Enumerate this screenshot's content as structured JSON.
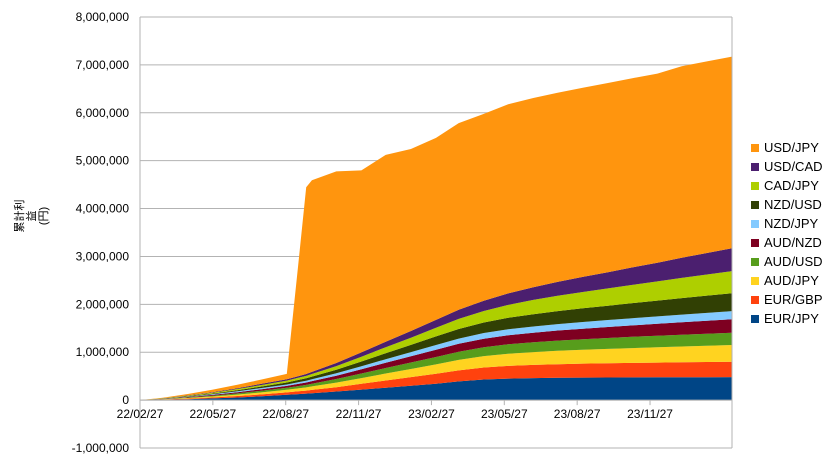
{
  "chart_data": {
    "type": "area",
    "stacked": true,
    "title": "",
    "xlabel": "",
    "ylabel": "累計利益\n(円)",
    "ylim": [
      -1000000,
      8000000
    ],
    "yticks": [
      -1000000,
      0,
      1000000,
      2000000,
      3000000,
      4000000,
      5000000,
      6000000,
      7000000,
      8000000
    ],
    "ytick_labels": [
      "-1,000,000",
      "0",
      "1,000,000",
      "2,000,000",
      "3,000,000",
      "4,000,000",
      "5,000,000",
      "6,000,000",
      "7,000,000",
      "8,000,000"
    ],
    "xtick_labels": [
      "22/02/27",
      "22/05/27",
      "22/08/27",
      "22/11/27",
      "23/02/27",
      "23/05/27",
      "23/08/27",
      "23/11/27"
    ],
    "grid": "horizontal",
    "legend_position": "right",
    "x": [
      "2022-02-27",
      "2022-03-27",
      "2022-04-27",
      "2022-05-27",
      "2022-06-27",
      "2022-07-27",
      "2022-08-27",
      "2022-09-10",
      "2022-09-20",
      "2022-09-27",
      "2022-10-27",
      "2022-11-27",
      "2022-12-27",
      "2023-01-27",
      "2023-02-27",
      "2023-03-27",
      "2023-04-27",
      "2023-05-27",
      "2023-06-27",
      "2023-07-27",
      "2023-08-27",
      "2023-09-27",
      "2023-10-27",
      "2023-11-27",
      "2023-12-27",
      "2024-01-27",
      "2024-02-27"
    ],
    "series": [
      {
        "name": "EUR/JPY",
        "color": "#004586",
        "values": [
          0,
          8000,
          20000,
          35000,
          55000,
          80000,
          110000,
          125000,
          135000,
          145000,
          180000,
          220000,
          260000,
          300000,
          340000,
          390000,
          430000,
          450000,
          460000,
          465000,
          470000,
          472000,
          474000,
          476000,
          478000,
          479000,
          480000
        ]
      },
      {
        "name": "EUR/GBP",
        "color": "#ff420e",
        "values": [
          0,
          5000,
          12000,
          20000,
          30000,
          40000,
          50000,
          58000,
          63000,
          68000,
          90000,
          120000,
          150000,
          180000,
          210000,
          230000,
          250000,
          265000,
          275000,
          285000,
          292000,
          298000,
          303000,
          308000,
          312000,
          316000,
          320000
        ]
      },
      {
        "name": "AUD/JPY",
        "color": "#ffd320",
        "values": [
          0,
          5000,
          12000,
          20000,
          30000,
          42000,
          55000,
          62000,
          68000,
          74000,
          95000,
          120000,
          145000,
          170000,
          195000,
          220000,
          240000,
          255000,
          268000,
          280000,
          290000,
          300000,
          310000,
          320000,
          330000,
          340000,
          350000
        ]
      },
      {
        "name": "AUD/USD",
        "color": "#579d1c",
        "values": [
          0,
          4000,
          10000,
          18000,
          26000,
          34000,
          42000,
          48000,
          52000,
          56000,
          75000,
          95000,
          115000,
          135000,
          155000,
          170000,
          185000,
          195000,
          205000,
          213000,
          220000,
          227000,
          234000,
          240000,
          246000,
          252000,
          258000
        ]
      },
      {
        "name": "AUD/NZD",
        "color": "#7e0021",
        "values": [
          0,
          4000,
          10000,
          16000,
          24000,
          32000,
          40000,
          46000,
          50000,
          54000,
          70000,
          90000,
          110000,
          130000,
          150000,
          165000,
          178000,
          190000,
          200000,
          210000,
          220000,
          230000,
          240000,
          250000,
          260000,
          270000,
          280000
        ]
      },
      {
        "name": "NZD/JPY",
        "color": "#83caff",
        "values": [
          0,
          3000,
          7000,
          12000,
          18000,
          24000,
          30000,
          34000,
          37000,
          40000,
          50000,
          62000,
          75000,
          88000,
          100000,
          110000,
          118000,
          124000,
          130000,
          135000,
          140000,
          145000,
          150000,
          155000,
          160000,
          165000,
          170000
        ]
      },
      {
        "name": "NZD/USD",
        "color": "#314004",
        "values": [
          0,
          4000,
          10000,
          16000,
          24000,
          32000,
          40000,
          46000,
          50000,
          54000,
          75000,
          100000,
          125000,
          150000,
          180000,
          200000,
          220000,
          240000,
          255000,
          270000,
          285000,
          300000,
          315000,
          330000,
          345000,
          360000,
          375000
        ]
      },
      {
        "name": "CAD/JPY",
        "color": "#aecf00",
        "values": [
          0,
          4000,
          10000,
          16000,
          24000,
          32000,
          40000,
          46000,
          50000,
          54000,
          75000,
          100000,
          125000,
          150000,
          180000,
          210000,
          240000,
          270000,
          300000,
          320000,
          340000,
          360000,
          380000,
          400000,
          420000,
          440000,
          460000
        ]
      },
      {
        "name": "USD/CAD",
        "color": "#4b1f6f",
        "values": [
          0,
          3000,
          7000,
          12000,
          18000,
          24000,
          30000,
          35000,
          40000,
          45000,
          65000,
          90000,
          115000,
          140000,
          165000,
          190000,
          215000,
          240000,
          265000,
          290000,
          315000,
          340000,
          365000,
          390000,
          420000,
          450000,
          480000
        ]
      },
      {
        "name": "USD/JPY",
        "color": "#ff950e",
        "values": [
          0,
          10000,
          30000,
          50000,
          70000,
          90000,
          110000,
          2300000,
          3900000,
          4000000,
          4000000,
          3800000,
          3900000,
          3800000,
          3800000,
          3900000,
          3900000,
          3950000,
          3950000,
          3950000,
          3950000,
          3950000,
          3950000,
          3950000,
          4000000,
          4000000,
          4000000
        ]
      }
    ]
  }
}
